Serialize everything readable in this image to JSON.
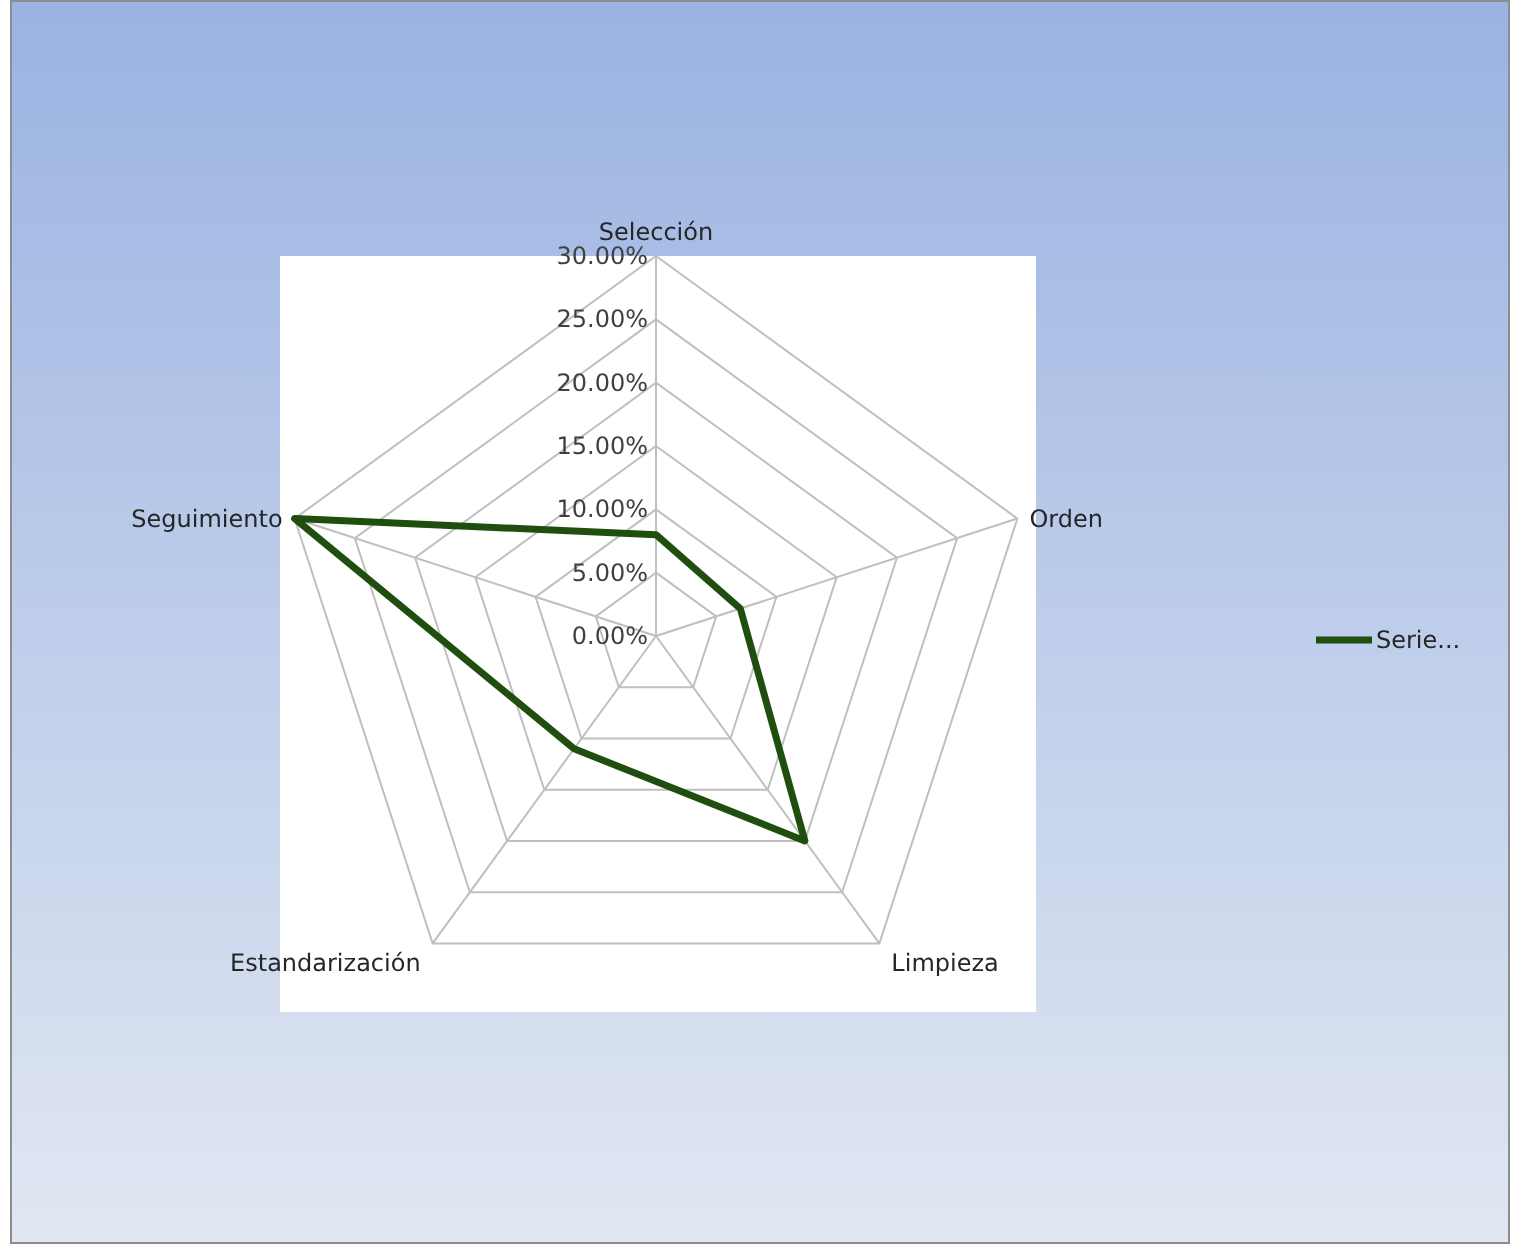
{
  "chart_data": {
    "type": "radar",
    "categories": [
      "Selección",
      "Orden",
      "Limpieza",
      "Estandarización",
      "Seguimiento"
    ],
    "series": [
      {
        "name": "Serie...",
        "color": "#1f4e0f",
        "values": [
          8,
          7,
          20,
          11,
          30
        ]
      }
    ],
    "ylim": [
      0,
      30
    ],
    "yticks": [
      {
        "value": 0,
        "label": "0.00%"
      },
      {
        "value": 5,
        "label": "5.00%"
      },
      {
        "value": 10,
        "label": "10.00%"
      },
      {
        "value": 15,
        "label": "15.00%"
      },
      {
        "value": 20,
        "label": "20.00%"
      },
      {
        "value": 25,
        "label": "25.00%"
      },
      {
        "value": 30,
        "label": "30.00%"
      }
    ],
    "grid": true,
    "legend": "right",
    "marker": "none",
    "line_style": "solid"
  }
}
